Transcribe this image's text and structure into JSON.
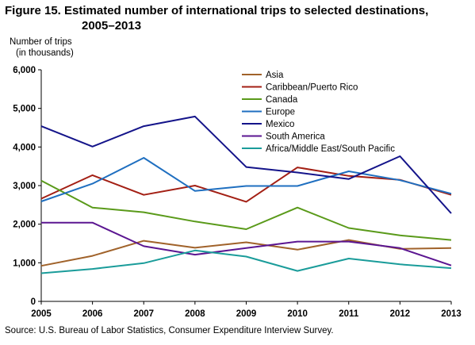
{
  "title_line1": "Figure 15. Estimated number of international  trips to selected destinations,",
  "title_line2": "2005–2013",
  "ylabel_line1": "Number of trips",
  "ylabel_line2": "(in thousands)",
  "source": "Source: U.S. Bureau  of Labor Statistics,  Consumer Expenditure  Interview Survey.",
  "chart_data": {
    "type": "line",
    "categories": [
      "2005",
      "2006",
      "2007",
      "2008",
      "2009",
      "2010",
      "2011",
      "2012",
      "2013"
    ],
    "ylim": [
      0,
      6000
    ],
    "yticks": [
      0,
      1000,
      2000,
      3000,
      4000,
      5000,
      6000
    ],
    "ytick_labels": [
      "0",
      "1,000",
      "2,000",
      "3,000",
      "4,000",
      "5,000",
      "6,000"
    ],
    "grid": false,
    "legend_position": "top-center",
    "series": [
      {
        "name": "Asia",
        "color": "#a0622a",
        "values": [
          920,
          1180,
          1570,
          1390,
          1530,
          1340,
          1590,
          1360,
          1380
        ]
      },
      {
        "name": "Caribbean/Puerto Rico",
        "color": "#a31f14",
        "values": [
          2660,
          3270,
          2760,
          3000,
          2580,
          3470,
          3250,
          3150,
          2760
        ]
      },
      {
        "name": "Canada",
        "color": "#5a9a1a",
        "values": [
          3130,
          2430,
          2310,
          2070,
          1870,
          2430,
          1900,
          1710,
          1590
        ]
      },
      {
        "name": "Europe",
        "color": "#1f6fc0",
        "values": [
          2590,
          3050,
          3720,
          2860,
          2990,
          2990,
          3370,
          3140,
          2790
        ]
      },
      {
        "name": "Mexico",
        "color": "#14148a",
        "values": [
          4540,
          4010,
          4540,
          4790,
          3480,
          3340,
          3170,
          3760,
          2280
        ]
      },
      {
        "name": "South America",
        "color": "#5b1691",
        "values": [
          2040,
          2040,
          1430,
          1210,
          1380,
          1550,
          1550,
          1380,
          930
        ]
      },
      {
        "name": "Africa/Middle East/South Pacific",
        "color": "#1a9c9a",
        "values": [
          730,
          840,
          990,
          1320,
          1160,
          790,
          1110,
          960,
          860
        ]
      }
    ]
  }
}
